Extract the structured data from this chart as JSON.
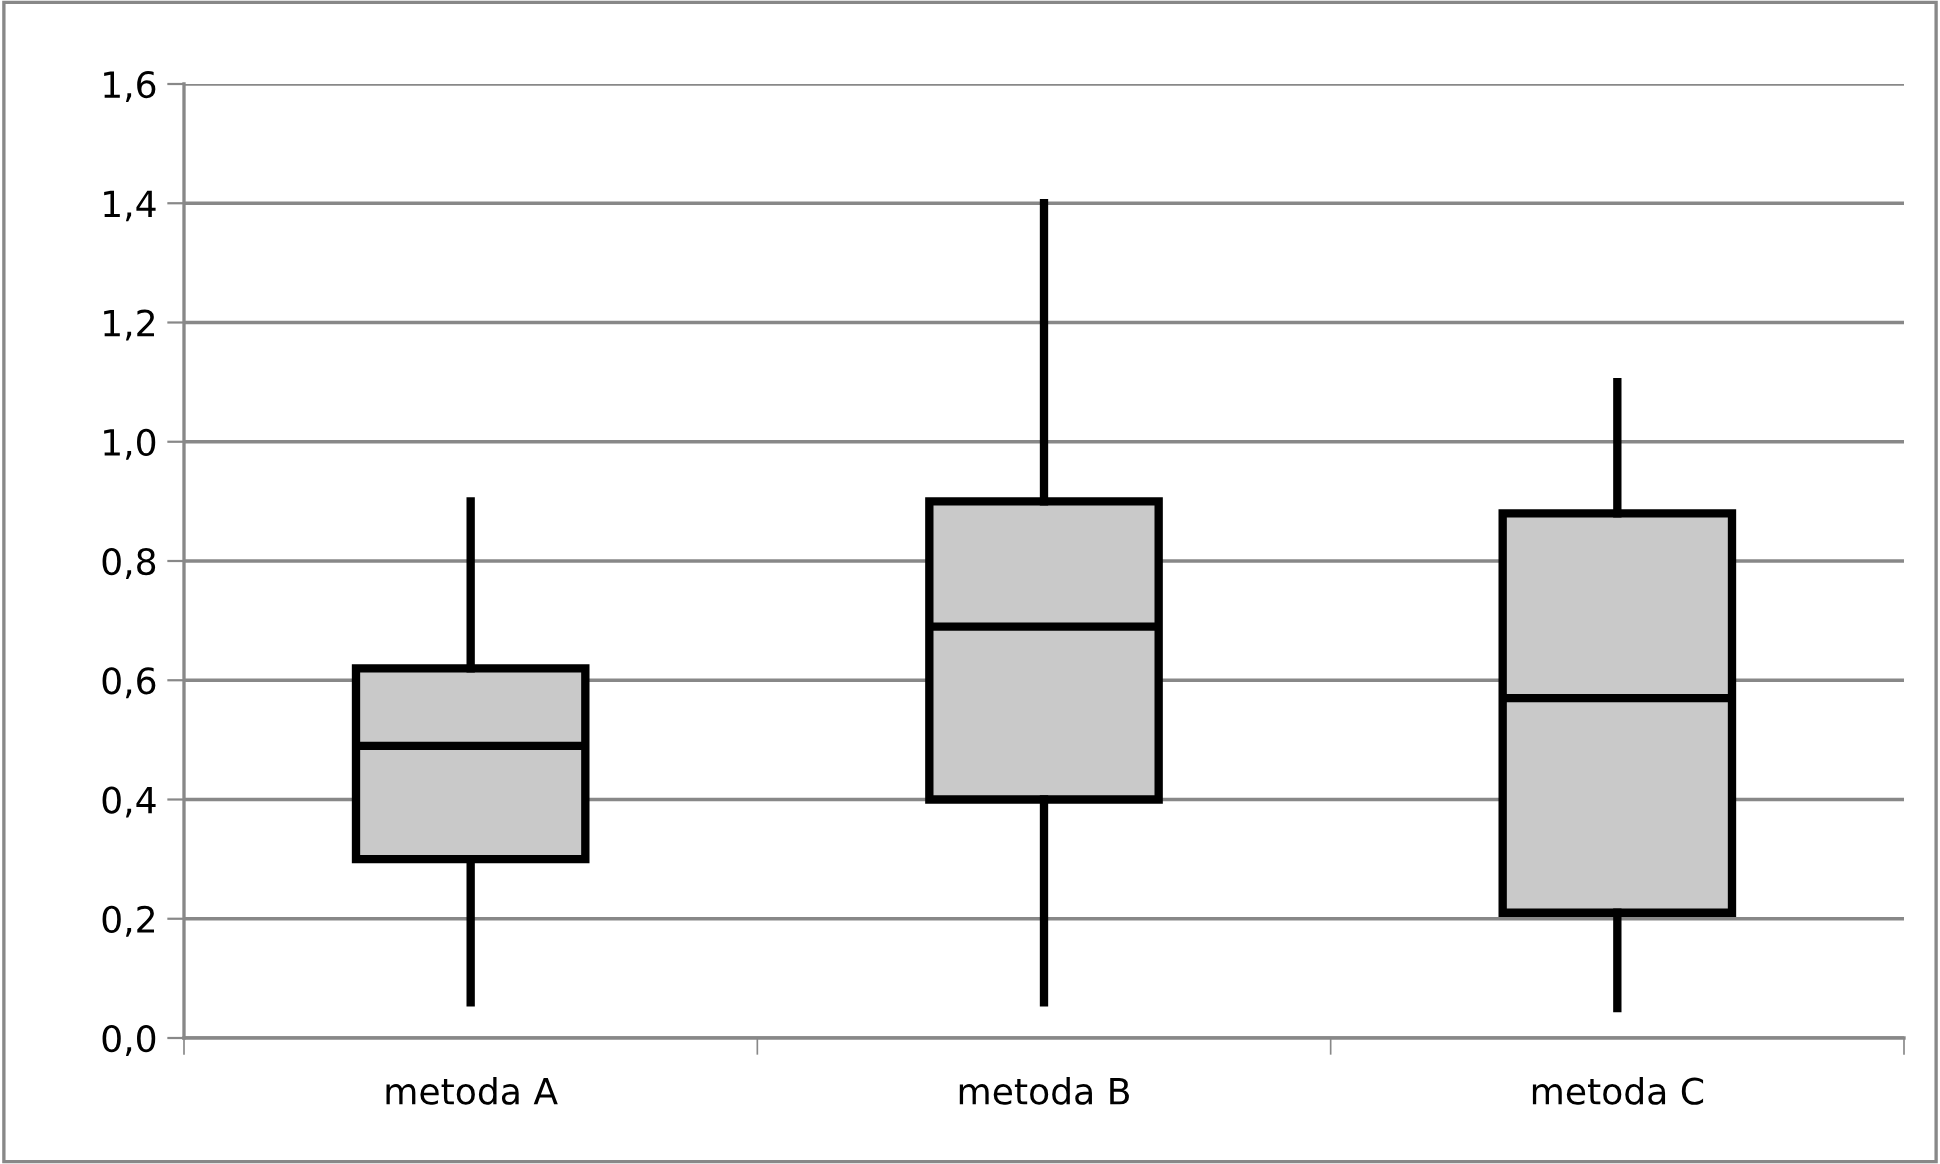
{
  "chart_data": {
    "type": "box",
    "categories": [
      "metoda A",
      "metoda B",
      "metoda C"
    ],
    "boxes": [
      {
        "low": 0.06,
        "q1": 0.3,
        "median": 0.49,
        "q3": 0.62,
        "high": 0.9
      },
      {
        "low": 0.06,
        "q1": 0.4,
        "median": 0.69,
        "q3": 0.9,
        "high": 1.4
      },
      {
        "low": 0.05,
        "q1": 0.21,
        "median": 0.57,
        "q3": 0.88,
        "high": 1.1
      }
    ],
    "color": "#c9c9c9",
    "ylim": [
      0,
      1.6
    ],
    "yticks": [
      {
        "value": 0,
        "label": "0,0"
      },
      {
        "value": 0.2,
        "label": "0,2"
      },
      {
        "value": 0.4,
        "label": "0,4"
      },
      {
        "value": 0.6,
        "label": "0,6"
      },
      {
        "value": 0.8,
        "label": "0,8"
      },
      {
        "value": 1.0,
        "label": "1,0"
      },
      {
        "value": 1.2,
        "label": "1,2"
      },
      {
        "value": 1.4,
        "label": "1,4"
      },
      {
        "value": 1.6,
        "label": "1,6"
      }
    ],
    "grid": "y"
  }
}
